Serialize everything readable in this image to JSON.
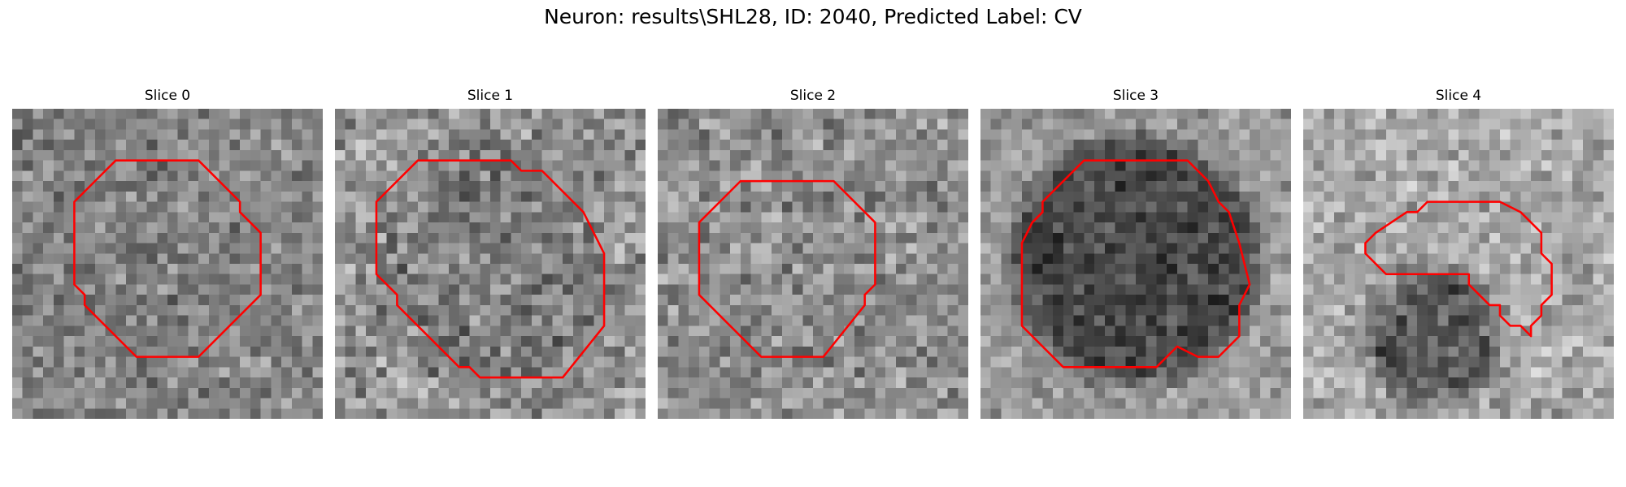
{
  "figure": {
    "title": "Neuron: results\\SHL28, ID: 2040, Predicted Label: CV",
    "grid_size": 30,
    "overlay_color": "#ff0000",
    "colormap": "gray"
  },
  "slices": [
    {
      "label": "Slice 0",
      "base_brightness": 0.52,
      "spot_brightness": 0.5,
      "noise": 0.22,
      "seed": 11,
      "spot_center": [
        14.5,
        14.5
      ],
      "spot_radius": 9.5,
      "contour": [
        [
          10,
          5
        ],
        [
          18,
          5
        ],
        [
          22,
          9
        ],
        [
          22,
          10
        ],
        [
          24,
          12
        ],
        [
          24,
          18
        ],
        [
          18,
          24
        ],
        [
          12,
          24
        ],
        [
          7,
          19
        ],
        [
          7,
          18
        ],
        [
          6,
          17
        ],
        [
          6,
          9
        ]
      ]
    },
    {
      "label": "Slice 1",
      "base_brightness": 0.58,
      "spot_brightness": 0.5,
      "noise": 0.26,
      "seed": 23,
      "spot_center": [
        15.0,
        15.5
      ],
      "spot_radius": 11.5,
      "contour": [
        [
          8,
          5
        ],
        [
          17,
          5
        ],
        [
          18,
          6
        ],
        [
          20,
          6
        ],
        [
          24,
          10
        ],
        [
          25,
          12
        ],
        [
          26,
          14
        ],
        [
          26,
          21
        ],
        [
          22,
          26
        ],
        [
          14,
          26
        ],
        [
          13,
          25
        ],
        [
          12,
          25
        ],
        [
          6,
          19
        ],
        [
          6,
          18
        ],
        [
          4,
          16
        ],
        [
          4,
          9
        ]
      ]
    },
    {
      "label": "Slice 2",
      "base_brightness": 0.56,
      "spot_brightness": 0.56,
      "noise": 0.25,
      "seed": 37,
      "spot_center": [
        14.5,
        14.5
      ],
      "spot_radius": 9.0,
      "contour": [
        [
          8,
          7
        ],
        [
          17,
          7
        ],
        [
          21,
          11
        ],
        [
          21,
          17
        ],
        [
          20,
          18
        ],
        [
          20,
          19
        ],
        [
          16,
          24
        ],
        [
          10,
          24
        ],
        [
          4,
          18
        ],
        [
          4,
          11
        ]
      ]
    },
    {
      "label": "Slice 3",
      "base_brightness": 0.6,
      "spot_brightness": 0.28,
      "noise": 0.18,
      "seed": 49,
      "spot_center": [
        15.0,
        14.5
      ],
      "spot_radius": 12.0,
      "contour": [
        [
          11,
          5
        ],
        [
          20,
          5
        ],
        [
          22,
          7
        ],
        [
          23,
          9
        ],
        [
          24,
          10
        ],
        [
          25,
          13
        ],
        [
          26,
          17
        ],
        [
          25,
          19
        ],
        [
          25,
          22
        ],
        [
          23,
          24
        ],
        [
          21,
          24
        ],
        [
          19,
          23
        ],
        [
          18,
          24
        ],
        [
          17,
          25
        ],
        [
          8,
          25
        ],
        [
          6,
          23
        ],
        [
          4,
          21
        ],
        [
          4,
          13
        ],
        [
          5,
          11
        ],
        [
          6,
          10
        ],
        [
          6,
          9
        ],
        [
          10,
          5
        ]
      ]
    },
    {
      "label": "Slice 4",
      "base_brightness": 0.66,
      "spot_brightness": 0.36,
      "noise": 0.22,
      "seed": 61,
      "spot_center": [
        12.5,
        22.0
      ],
      "spot_radius": 6.5,
      "contour": [
        [
          12,
          9
        ],
        [
          19,
          9
        ],
        [
          21,
          10
        ],
        [
          23,
          12
        ],
        [
          23,
          14
        ],
        [
          24,
          15
        ],
        [
          24,
          18
        ],
        [
          23,
          19
        ],
        [
          23,
          20
        ],
        [
          22,
          21
        ],
        [
          22,
          22
        ],
        [
          21,
          21
        ],
        [
          20,
          21
        ],
        [
          19,
          20
        ],
        [
          19,
          19
        ],
        [
          18,
          19
        ],
        [
          17,
          18
        ],
        [
          16,
          17
        ],
        [
          16,
          16
        ],
        [
          9,
          16
        ],
        [
          8,
          16
        ],
        [
          7,
          15
        ],
        [
          6,
          14
        ],
        [
          6,
          13
        ],
        [
          7,
          12
        ],
        [
          10,
          10
        ],
        [
          11,
          10
        ]
      ]
    }
  ]
}
